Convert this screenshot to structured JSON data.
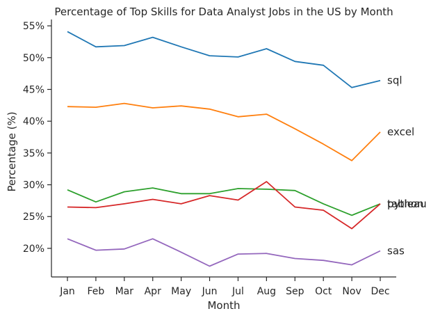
{
  "chart_data": {
    "type": "line",
    "title": "Percentage of Top Skills for Data Analyst Jobs in the US by Month",
    "xlabel": "Month",
    "ylabel": "Percentage (%)",
    "categories": [
      "Jan",
      "Feb",
      "Mar",
      "Apr",
      "May",
      "Jun",
      "Jul",
      "Aug",
      "Sep",
      "Oct",
      "Nov",
      "Dec"
    ],
    "ylim": [
      15.5,
      56
    ],
    "yticks": [
      20,
      25,
      30,
      35,
      40,
      45,
      50,
      55
    ],
    "ytick_labels": [
      "20%",
      "25%",
      "30%",
      "35%",
      "40%",
      "45%",
      "50%",
      "55%"
    ],
    "grid": false,
    "legend": "none",
    "series": [
      {
        "name": "sql",
        "color": "#1f77b4",
        "values": [
          54.1,
          51.7,
          51.9,
          53.2,
          51.7,
          50.3,
          50.1,
          51.4,
          49.4,
          48.8,
          45.3,
          46.4
        ]
      },
      {
        "name": "excel",
        "color": "#ff7f0e",
        "values": [
          42.3,
          42.2,
          42.8,
          42.1,
          42.4,
          41.9,
          40.7,
          41.1,
          38.8,
          36.4,
          33.8,
          38.3
        ]
      },
      {
        "name": "tableau",
        "color": "#2ca02c",
        "values": [
          29.2,
          27.3,
          28.9,
          29.5,
          28.6,
          28.6,
          29.4,
          29.3,
          29.1,
          27.0,
          25.2,
          27.0
        ]
      },
      {
        "name": "python",
        "color": "#d62728",
        "values": [
          26.5,
          26.4,
          27.0,
          27.7,
          27.0,
          28.3,
          27.6,
          30.5,
          26.5,
          26.0,
          23.1,
          27.0
        ]
      },
      {
        "name": "sas",
        "color": "#9467bd",
        "values": [
          21.5,
          19.7,
          19.9,
          21.5,
          19.4,
          17.2,
          19.1,
          19.2,
          18.4,
          18.1,
          17.4,
          19.6
        ]
      }
    ]
  }
}
